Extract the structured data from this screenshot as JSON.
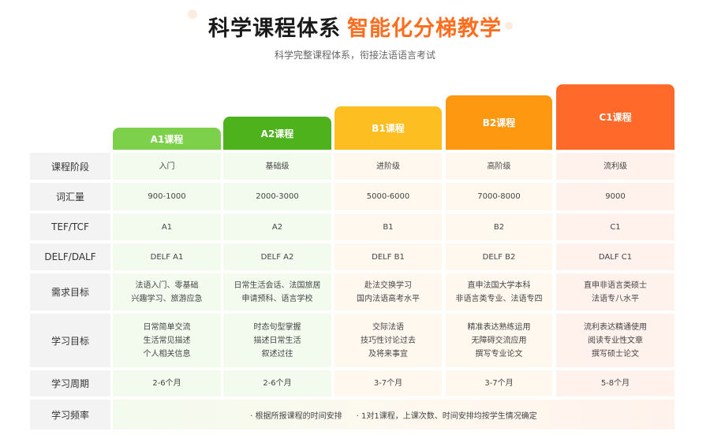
{
  "header": {
    "title_dark": "科学课程体系",
    "title_accent": "智能化分梯教学",
    "subtitle": "科学完整课程体系，衔接法语语言考试"
  },
  "colors": {
    "A1": "#7dd049",
    "A2": "#4db21b",
    "B1": "#fcbe20",
    "B2": "#fd9810",
    "C1": "#ff6a2b",
    "accent": "#ff6d1f"
  },
  "courses": [
    "A1课程",
    "A2课程",
    "B1课程",
    "B2课程",
    "C1课程"
  ],
  "rows": [
    {
      "label": "课程阶段",
      "cells": [
        "入门",
        "基础级",
        "进阶级",
        "高阶级",
        "流利级"
      ]
    },
    {
      "label": "词汇量",
      "cells": [
        "900-1000",
        "2000-3000",
        "5000-6000",
        "7000-8000",
        "9000"
      ]
    },
    {
      "label": "TEF/TCF",
      "cells": [
        "A1",
        "A2",
        "B1",
        "B2",
        "C1"
      ]
    },
    {
      "label": "DELF/DALF",
      "cells": [
        "DELF A1",
        "DELF A2",
        "DELF B1",
        "DELF B2",
        "DALF C1"
      ]
    },
    {
      "label": "需求目标",
      "cells": [
        "法语入门、零基础\n兴趣学习、旅游应急",
        "日常生活会话、法国旅居\n申请预科、语言学校",
        "赴法交换学习\n国内法语高考水平",
        "直申法国大学本科\n非语言类专业、法语专四",
        "直申非语言类硕士\n法语专八水平"
      ]
    },
    {
      "label": "学习目标",
      "cells": [
        "日常简单交流\n生活常见描述\n个人相关信息",
        "时态句型掌握\n描述日常生活\n叙述过往",
        "交际法语\n技巧性讨论过去\n及将来事宜",
        "精准表达熟练运用\n无障碍交流应用\n撰写专业论文",
        "流利表达精通使用\n阅读专业性文章\n撰写硕士论文"
      ]
    },
    {
      "label": "学习周期",
      "cells": [
        "2-6个月",
        "2-6个月",
        "3-7个月",
        "3-7个月",
        "5-8个月"
      ]
    }
  ],
  "frequency": {
    "label": "学习频率",
    "notes": [
      "· 根据所报课程的时间安排",
      "· 1对1课程，上课次数、时间安排均按学生情况确定"
    ]
  }
}
